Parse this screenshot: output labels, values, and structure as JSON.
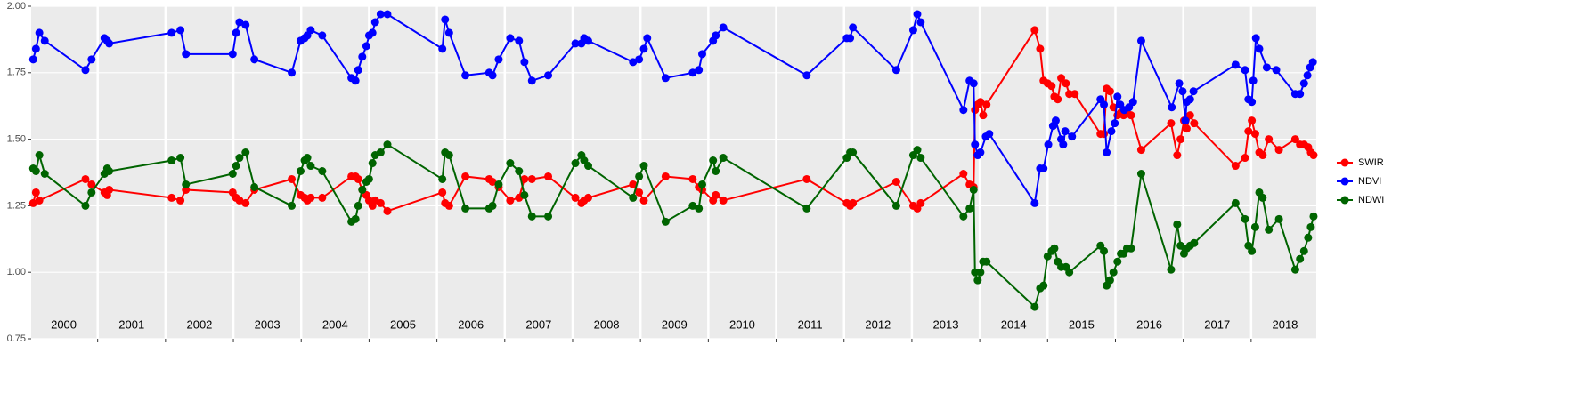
{
  "chart_data": {
    "type": "line",
    "xlim": [
      2000.02,
      2018.96
    ],
    "ylim": [
      0.75,
      2.0
    ],
    "yticks": [
      0.75,
      {
        "value": 1.0,
        "label": "1.00"
      },
      1.25,
      {
        "value": 1.5,
        "label": "1.50"
      },
      1.75,
      {
        "value": 2.0,
        "label": "2.00"
      }
    ],
    "xticks": [
      {
        "value": 2000.5,
        "label": "2000"
      },
      {
        "value": 2001.5,
        "label": "2001"
      },
      {
        "value": 2002.5,
        "label": "2002"
      },
      {
        "value": 2003.5,
        "label": "2003"
      },
      {
        "value": 2004.5,
        "label": "2004"
      },
      {
        "value": 2005.5,
        "label": "2005"
      },
      {
        "value": 2006.5,
        "label": "2006"
      },
      {
        "value": 2007.5,
        "label": "2007"
      },
      {
        "value": 2008.5,
        "label": "2008"
      },
      {
        "value": 2009.5,
        "label": "2009"
      },
      {
        "value": 2010.5,
        "label": "2010"
      },
      {
        "value": 2011.5,
        "label": "2011"
      },
      {
        "value": 2012.5,
        "label": "2012"
      },
      {
        "value": 2013.5,
        "label": "2013"
      },
      {
        "value": 2014.5,
        "label": "2014"
      },
      {
        "value": 2015.5,
        "label": "2015"
      },
      {
        "value": 2016.5,
        "label": "2016"
      },
      {
        "value": 2017.5,
        "label": "2017"
      },
      {
        "value": 2018.5,
        "label": "2018"
      }
    ],
    "xgrid": [
      2001,
      2002,
      2003,
      2004,
      2005,
      2006,
      2007,
      2008,
      2009,
      2010,
      2011,
      2012,
      2013,
      2014,
      2015,
      2016,
      2017,
      2018
    ],
    "grid": true,
    "legend": "right",
    "series": [
      {
        "name": "SWIR",
        "color": "#ff0000",
        "x": [
          2000.05,
          2000.09,
          2000.14,
          2000.82,
          2000.91,
          2001.1,
          2001.14,
          2001.17,
          2002.09,
          2002.22,
          2002.3,
          2002.99,
          2003.04,
          2003.09,
          2003.18,
          2003.31,
          2003.86,
          2003.99,
          2004.05,
          2004.09,
          2004.14,
          2004.31,
          2004.74,
          2004.8,
          2004.84,
          2004.9,
          2004.96,
          2005.0,
          2005.05,
          2005.09,
          2005.17,
          2005.27,
          2006.08,
          2006.12,
          2006.18,
          2006.42,
          2006.77,
          2006.82,
          2006.91,
          2007.08,
          2007.21,
          2007.29,
          2007.4,
          2007.64,
          2008.04,
          2008.13,
          2008.17,
          2008.23,
          2008.89,
          2008.98,
          2009.05,
          2009.37,
          2009.77,
          2009.86,
          2009.91,
          2010.07,
          2010.11,
          2010.22,
          2011.45,
          2012.04,
          2012.09,
          2012.13,
          2012.77,
          2013.02,
          2013.08,
          2013.13,
          2013.76,
          2013.85,
          2013.91,
          2013.93,
          2013.97,
          2014.01,
          2014.05,
          2014.1,
          2014.81,
          2014.89,
          2014.94,
          2015.0,
          2015.06,
          2015.1,
          2015.15,
          2015.2,
          2015.27,
          2015.32,
          2015.4,
          2015.78,
          2015.83,
          2015.87,
          2015.92,
          2015.97,
          2016.03,
          2016.08,
          2016.12,
          2016.17,
          2016.23,
          2016.38,
          2016.82,
          2016.91,
          2016.96,
          2017.01,
          2017.05,
          2017.1,
          2017.16,
          2017.77,
          2017.91,
          2017.96,
          2018.01,
          2018.06,
          2018.12,
          2018.17,
          2018.26,
          2018.41,
          2018.65,
          2018.72,
          2018.78,
          2018.84,
          2018.88,
          2018.92
        ],
        "values": [
          1.26,
          1.3,
          1.27,
          1.35,
          1.33,
          1.3,
          1.29,
          1.31,
          1.28,
          1.27,
          1.31,
          1.3,
          1.28,
          1.27,
          1.26,
          1.31,
          1.35,
          1.29,
          1.28,
          1.27,
          1.28,
          1.28,
          1.36,
          1.36,
          1.35,
          1.31,
          1.29,
          1.27,
          1.25,
          1.27,
          1.26,
          1.23,
          1.3,
          1.26,
          1.25,
          1.36,
          1.35,
          1.34,
          1.32,
          1.27,
          1.28,
          1.35,
          1.35,
          1.36,
          1.28,
          1.26,
          1.27,
          1.28,
          1.33,
          1.3,
          1.27,
          1.36,
          1.35,
          1.32,
          1.31,
          1.27,
          1.29,
          1.27,
          1.35,
          1.26,
          1.25,
          1.26,
          1.34,
          1.25,
          1.24,
          1.26,
          1.37,
          1.33,
          1.32,
          1.61,
          1.63,
          1.64,
          1.59,
          1.63,
          1.91,
          1.84,
          1.72,
          1.71,
          1.7,
          1.66,
          1.65,
          1.73,
          1.71,
          1.67,
          1.67,
          1.52,
          1.52,
          1.69,
          1.68,
          1.62,
          1.59,
          1.6,
          1.59,
          1.6,
          1.59,
          1.46,
          1.56,
          1.44,
          1.5,
          1.57,
          1.54,
          1.59,
          1.56,
          1.4,
          1.43,
          1.53,
          1.57,
          1.52,
          1.45,
          1.44,
          1.5,
          1.46,
          1.5,
          1.48,
          1.48,
          1.47,
          1.45,
          1.44
        ]
      },
      {
        "name": "NDVI",
        "color": "#0000ff",
        "x": [
          2000.05,
          2000.09,
          2000.14,
          2000.22,
          2000.82,
          2000.91,
          2001.1,
          2001.14,
          2001.17,
          2002.09,
          2002.22,
          2002.3,
          2002.99,
          2003.04,
          2003.09,
          2003.18,
          2003.31,
          2003.86,
          2003.99,
          2004.05,
          2004.09,
          2004.14,
          2004.31,
          2004.74,
          2004.8,
          2004.84,
          2004.9,
          2004.96,
          2005.0,
          2005.05,
          2005.09,
          2005.17,
          2005.27,
          2006.08,
          2006.12,
          2006.18,
          2006.42,
          2006.77,
          2006.82,
          2006.91,
          2007.08,
          2007.21,
          2007.29,
          2007.4,
          2007.64,
          2008.04,
          2008.13,
          2008.17,
          2008.23,
          2008.89,
          2008.98,
          2009.05,
          2009.1,
          2009.37,
          2009.77,
          2009.86,
          2009.91,
          2010.07,
          2010.11,
          2010.22,
          2011.45,
          2012.04,
          2012.09,
          2012.13,
          2012.77,
          2013.02,
          2013.08,
          2013.13,
          2013.76,
          2013.85,
          2013.91,
          2013.93,
          2013.97,
          2014.01,
          2014.09,
          2014.14,
          2014.81,
          2014.89,
          2014.94,
          2015.01,
          2015.08,
          2015.12,
          2015.2,
          2015.23,
          2015.26,
          2015.36,
          2015.78,
          2015.83,
          2015.87,
          2015.94,
          2015.99,
          2016.03,
          2016.07,
          2016.13,
          2016.2,
          2016.26,
          2016.38,
          2016.83,
          2016.94,
          2016.99,
          2017.03,
          2017.05,
          2017.1,
          2017.15,
          2017.77,
          2017.91,
          2017.96,
          2018.01,
          2018.03,
          2018.07,
          2018.12,
          2018.23,
          2018.37,
          2018.65,
          2018.72,
          2018.78,
          2018.83,
          2018.87,
          2018.91
        ],
        "values": [
          1.8,
          1.84,
          1.9,
          1.87,
          1.76,
          1.8,
          1.88,
          1.87,
          1.86,
          1.9,
          1.91,
          1.82,
          1.82,
          1.9,
          1.94,
          1.93,
          1.8,
          1.75,
          1.87,
          1.88,
          1.89,
          1.91,
          1.89,
          1.73,
          1.72,
          1.76,
          1.81,
          1.85,
          1.89,
          1.9,
          1.94,
          1.97,
          1.97,
          1.84,
          1.95,
          1.9,
          1.74,
          1.75,
          1.74,
          1.8,
          1.88,
          1.87,
          1.79,
          1.72,
          1.74,
          1.86,
          1.86,
          1.88,
          1.87,
          1.79,
          1.8,
          1.84,
          1.88,
          1.73,
          1.75,
          1.76,
          1.82,
          1.87,
          1.89,
          1.92,
          1.74,
          1.88,
          1.88,
          1.92,
          1.76,
          1.91,
          1.97,
          1.94,
          1.61,
          1.72,
          1.71,
          1.48,
          1.44,
          1.45,
          1.51,
          1.52,
          1.26,
          1.39,
          1.39,
          1.48,
          1.55,
          1.57,
          1.5,
          1.48,
          1.53,
          1.51,
          1.65,
          1.63,
          1.45,
          1.53,
          1.56,
          1.66,
          1.63,
          1.61,
          1.62,
          1.64,
          1.87,
          1.62,
          1.71,
          1.68,
          1.57,
          1.64,
          1.65,
          1.68,
          1.78,
          1.76,
          1.65,
          1.64,
          1.72,
          1.88,
          1.84,
          1.77,
          1.76,
          1.67,
          1.67,
          1.71,
          1.74,
          1.77,
          1.79
        ]
      },
      {
        "name": "NDWI",
        "color": "#006400",
        "x": [
          2000.05,
          2000.09,
          2000.14,
          2000.22,
          2000.82,
          2000.91,
          2001.1,
          2001.14,
          2001.17,
          2002.09,
          2002.22,
          2002.3,
          2002.99,
          2003.04,
          2003.09,
          2003.18,
          2003.31,
          2003.86,
          2003.99,
          2004.05,
          2004.09,
          2004.14,
          2004.31,
          2004.74,
          2004.8,
          2004.84,
          2004.9,
          2004.96,
          2005.0,
          2005.05,
          2005.09,
          2005.17,
          2005.27,
          2006.08,
          2006.12,
          2006.18,
          2006.42,
          2006.77,
          2006.82,
          2006.91,
          2007.08,
          2007.21,
          2007.29,
          2007.4,
          2007.64,
          2008.04,
          2008.13,
          2008.17,
          2008.23,
          2008.89,
          2008.98,
          2009.05,
          2009.37,
          2009.77,
          2009.86,
          2009.91,
          2010.07,
          2010.11,
          2010.22,
          2011.45,
          2012.04,
          2012.09,
          2012.13,
          2012.77,
          2013.02,
          2013.08,
          2013.13,
          2013.76,
          2013.85,
          2013.91,
          2013.93,
          2013.97,
          2014.01,
          2014.05,
          2014.1,
          2014.81,
          2014.89,
          2014.94,
          2015.0,
          2015.06,
          2015.1,
          2015.15,
          2015.2,
          2015.27,
          2015.32,
          2015.78,
          2015.83,
          2015.87,
          2015.92,
          2015.97,
          2016.03,
          2016.08,
          2016.12,
          2016.17,
          2016.23,
          2016.38,
          2016.82,
          2016.91,
          2016.96,
          2017.01,
          2017.05,
          2017.1,
          2017.16,
          2017.77,
          2017.91,
          2017.96,
          2018.01,
          2018.06,
          2018.12,
          2018.17,
          2018.26,
          2018.41,
          2018.65,
          2018.72,
          2018.78,
          2018.84,
          2018.88,
          2018.92
        ],
        "values": [
          1.39,
          1.38,
          1.44,
          1.37,
          1.25,
          1.3,
          1.37,
          1.39,
          1.38,
          1.42,
          1.43,
          1.33,
          1.37,
          1.4,
          1.43,
          1.45,
          1.32,
          1.25,
          1.38,
          1.42,
          1.43,
          1.4,
          1.38,
          1.19,
          1.2,
          1.25,
          1.31,
          1.34,
          1.35,
          1.41,
          1.44,
          1.45,
          1.48,
          1.35,
          1.45,
          1.44,
          1.24,
          1.24,
          1.25,
          1.33,
          1.41,
          1.38,
          1.29,
          1.21,
          1.21,
          1.41,
          1.44,
          1.42,
          1.4,
          1.28,
          1.36,
          1.4,
          1.19,
          1.25,
          1.24,
          1.33,
          1.42,
          1.38,
          1.43,
          1.24,
          1.43,
          1.45,
          1.45,
          1.25,
          1.44,
          1.46,
          1.43,
          1.21,
          1.24,
          1.31,
          1.0,
          0.97,
          1.0,
          1.04,
          1.04,
          0.87,
          0.94,
          0.95,
          1.06,
          1.08,
          1.09,
          1.04,
          1.02,
          1.02,
          1.0,
          1.1,
          1.08,
          0.95,
          0.97,
          1.0,
          1.04,
          1.07,
          1.07,
          1.09,
          1.09,
          1.37,
          1.01,
          1.18,
          1.1,
          1.07,
          1.09,
          1.1,
          1.11,
          1.26,
          1.2,
          1.1,
          1.08,
          1.17,
          1.3,
          1.28,
          1.16,
          1.2,
          1.01,
          1.05,
          1.08,
          1.13,
          1.17,
          1.21
        ]
      }
    ]
  }
}
